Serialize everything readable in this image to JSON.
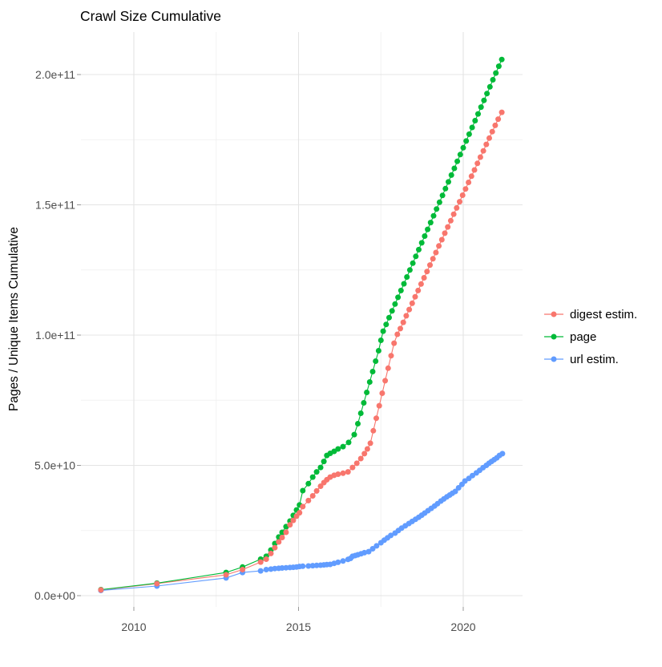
{
  "title": "Crawl Size Cumulative",
  "axes": {
    "y_label": "Pages / Unique Items Cumulative",
    "x_tick_labels": [
      "2010",
      "2015",
      "2020"
    ],
    "y_tick_labels": [
      "0.0e+00",
      "5.0e+10",
      "1.0e+11",
      "1.5e+11",
      "2.0e+11"
    ]
  },
  "legend": {
    "position": "right",
    "items": [
      "digest estim.",
      "page",
      "url estim."
    ]
  },
  "colors": {
    "digest": "#F8766D",
    "page": "#00BA38",
    "url": "#619CFF",
    "grid_major": "#e4e4e4",
    "grid_minor": "#f2f2f2",
    "tick_label": "#4d4d4d",
    "tick_mark": "#999999",
    "text": "#000000",
    "background": "#ffffff"
  },
  "chart_data": {
    "type": "line",
    "title": "Crawl Size Cumulative",
    "xlabel": "",
    "ylabel": "Pages / Unique Items Cumulative",
    "xlim": [
      2008.4,
      2021.8
    ],
    "ylim": [
      0,
      210000000000.0
    ],
    "x_ticks": [
      2010,
      2015,
      2020
    ],
    "x_tick_labels": [
      "2010",
      "2015",
      "2020"
    ],
    "x_minor_ticks": [
      2012.5,
      2017.5
    ],
    "y_ticks": [
      0,
      50000000000.0,
      100000000000.0,
      150000000000.0,
      200000000000.0
    ],
    "y_tick_labels": [
      "0.0e+00",
      "5.0e+10",
      "1.0e+11",
      "1.5e+11",
      "2.0e+11"
    ],
    "y_minor_ticks": [
      25000000000.0,
      75000000000.0,
      125000000000.0,
      175000000000.0
    ],
    "grid": true,
    "legend_position": "right",
    "marker_style": "point-with-line",
    "series": [
      {
        "name": "digest estim.",
        "color": "#F8766D",
        "points": [
          [
            2009.0,
            2200000000.0
          ],
          [
            2010.7,
            4600000000.0
          ],
          [
            2012.8,
            8000000000.0
          ],
          [
            2013.3,
            10000000000.0
          ],
          [
            2013.85,
            12900000000.0
          ],
          [
            2014.02,
            14000000000.0
          ],
          [
            2014.16,
            16200000000.0
          ],
          [
            2014.28,
            18400000000.0
          ],
          [
            2014.4,
            20600000000.0
          ],
          [
            2014.5,
            22300000000.0
          ],
          [
            2014.62,
            24300000000.0
          ],
          [
            2014.74,
            27200000000.0
          ],
          [
            2014.84,
            28900000000.0
          ],
          [
            2014.94,
            30500000000.0
          ],
          [
            2015.03,
            31800000000.0
          ],
          [
            2015.13,
            34200000000.0
          ],
          [
            2015.3,
            36500000000.0
          ],
          [
            2015.43,
            38300000000.0
          ],
          [
            2015.55,
            40200000000.0
          ],
          [
            2015.67,
            42000000000.0
          ],
          [
            2015.77,
            43400000000.0
          ],
          [
            2015.86,
            44500000000.0
          ],
          [
            2015.96,
            45500000000.0
          ],
          [
            2016.08,
            46200000000.0
          ],
          [
            2016.2,
            46600000000.0
          ],
          [
            2016.35,
            47000000000.0
          ],
          [
            2016.5,
            47500000000.0
          ],
          [
            2016.64,
            49200000000.0
          ],
          [
            2016.77,
            50800000000.0
          ],
          [
            2016.89,
            52600000000.0
          ],
          [
            2017.0,
            54500000000.0
          ],
          [
            2017.09,
            56300000000.0
          ],
          [
            2017.18,
            58500000000.0
          ],
          [
            2017.27,
            63300000000.0
          ],
          [
            2017.36,
            68100000000.0
          ],
          [
            2017.45,
            72900000000.0
          ],
          [
            2017.54,
            77700000000.0
          ],
          [
            2017.63,
            82500000000.0
          ],
          [
            2017.72,
            87300000000.0
          ],
          [
            2017.81,
            92100000000.0
          ],
          [
            2017.9,
            96900000000.0
          ],
          [
            2018.0,
            100300000000.0
          ],
          [
            2018.09,
            102500000000.0
          ],
          [
            2018.18,
            104900000000.0
          ],
          [
            2018.27,
            107400000000.0
          ],
          [
            2018.36,
            109800000000.0
          ],
          [
            2018.45,
            112200000000.0
          ],
          [
            2018.54,
            114700000000.0
          ],
          [
            2018.63,
            117100000000.0
          ],
          [
            2018.72,
            119600000000.0
          ],
          [
            2018.81,
            122000000000.0
          ],
          [
            2018.9,
            124400000000.0
          ],
          [
            2018.99,
            126900000000.0
          ],
          [
            2019.08,
            129300000000.0
          ],
          [
            2019.17,
            131700000000.0
          ],
          [
            2019.26,
            134200000000.0
          ],
          [
            2019.35,
            136600000000.0
          ],
          [
            2019.44,
            139100000000.0
          ],
          [
            2019.53,
            141500000000.0
          ],
          [
            2019.62,
            143900000000.0
          ],
          [
            2019.71,
            146400000000.0
          ],
          [
            2019.8,
            148800000000.0
          ],
          [
            2019.89,
            151200000000.0
          ],
          [
            2019.98,
            153700000000.0
          ],
          [
            2020.07,
            156100000000.0
          ],
          [
            2020.16,
            158600000000.0
          ],
          [
            2020.25,
            161000000000.0
          ],
          [
            2020.34,
            163400000000.0
          ],
          [
            2020.43,
            165900000000.0
          ],
          [
            2020.52,
            168300000000.0
          ],
          [
            2020.61,
            170700000000.0
          ],
          [
            2020.7,
            173200000000.0
          ],
          [
            2020.79,
            175600000000.0
          ],
          [
            2020.88,
            178100000000.0
          ],
          [
            2020.97,
            180500000000.0
          ],
          [
            2021.06,
            182900000000.0
          ],
          [
            2021.17,
            185500000000.0
          ]
        ]
      },
      {
        "name": "page",
        "color": "#00BA38",
        "points": [
          [
            2009.0,
            2300000000.0
          ],
          [
            2010.7,
            4800000000.0
          ],
          [
            2012.8,
            8900000000.0
          ],
          [
            2013.3,
            11000000000.0
          ],
          [
            2013.85,
            14000000000.0
          ],
          [
            2014.02,
            15100000000.0
          ],
          [
            2014.16,
            17500000000.0
          ],
          [
            2014.28,
            20000000000.0
          ],
          [
            2014.4,
            22500000000.0
          ],
          [
            2014.5,
            24300000000.0
          ],
          [
            2014.62,
            26500000000.0
          ],
          [
            2014.74,
            28600000000.0
          ],
          [
            2014.84,
            30800000000.0
          ],
          [
            2014.94,
            32900000000.0
          ],
          [
            2015.03,
            34800000000.0
          ],
          [
            2015.13,
            40300000000.0
          ],
          [
            2015.3,
            43000000000.0
          ],
          [
            2015.43,
            45500000000.0
          ],
          [
            2015.55,
            47500000000.0
          ],
          [
            2015.67,
            49200000000.0
          ],
          [
            2015.77,
            51500000000.0
          ],
          [
            2015.86,
            53800000000.0
          ],
          [
            2015.96,
            54600000000.0
          ],
          [
            2016.08,
            55400000000.0
          ],
          [
            2016.2,
            56300000000.0
          ],
          [
            2016.35,
            57200000000.0
          ],
          [
            2016.52,
            58800000000.0
          ],
          [
            2016.69,
            61800000000.0
          ],
          [
            2016.8,
            66000000000.0
          ],
          [
            2016.89,
            70000000000.0
          ],
          [
            2016.98,
            74000000000.0
          ],
          [
            2017.07,
            78000000000.0
          ],
          [
            2017.16,
            82000000000.0
          ],
          [
            2017.25,
            86000000000.0
          ],
          [
            2017.34,
            90000000000.0
          ],
          [
            2017.43,
            94000000000.0
          ],
          [
            2017.5,
            98000000000.0
          ],
          [
            2017.57,
            101500000000.0
          ],
          [
            2017.66,
            104100000000.0
          ],
          [
            2017.75,
            106700000000.0
          ],
          [
            2017.84,
            109300000000.0
          ],
          [
            2017.93,
            111900000000.0
          ],
          [
            2018.02,
            114500000000.0
          ],
          [
            2018.11,
            117100000000.0
          ],
          [
            2018.2,
            119700000000.0
          ],
          [
            2018.29,
            122300000000.0
          ],
          [
            2018.38,
            125000000000.0
          ],
          [
            2018.47,
            127600000000.0
          ],
          [
            2018.56,
            130200000000.0
          ],
          [
            2018.65,
            132800000000.0
          ],
          [
            2018.74,
            135400000000.0
          ],
          [
            2018.83,
            138000000000.0
          ],
          [
            2018.92,
            140600000000.0
          ],
          [
            2019.01,
            143200000000.0
          ],
          [
            2019.1,
            145800000000.0
          ],
          [
            2019.19,
            148400000000.0
          ],
          [
            2019.28,
            151000000000.0
          ],
          [
            2019.37,
            153600000000.0
          ],
          [
            2019.46,
            156200000000.0
          ],
          [
            2019.55,
            158800000000.0
          ],
          [
            2019.64,
            161400000000.0
          ],
          [
            2019.73,
            164000000000.0
          ],
          [
            2019.82,
            166700000000.0
          ],
          [
            2019.91,
            169300000000.0
          ],
          [
            2020.0,
            171900000000.0
          ],
          [
            2020.09,
            174500000000.0
          ],
          [
            2020.18,
            177100000000.0
          ],
          [
            2020.27,
            179700000000.0
          ],
          [
            2020.36,
            182300000000.0
          ],
          [
            2020.45,
            184900000000.0
          ],
          [
            2020.54,
            187500000000.0
          ],
          [
            2020.63,
            190100000000.0
          ],
          [
            2020.72,
            192700000000.0
          ],
          [
            2020.81,
            195300000000.0
          ],
          [
            2020.9,
            198000000000.0
          ],
          [
            2020.99,
            200600000000.0
          ],
          [
            2021.08,
            203200000000.0
          ],
          [
            2021.17,
            205800000000.0
          ]
        ]
      },
      {
        "name": "url estim.",
        "color": "#619CFF",
        "points": [
          [
            2009.0,
            2000000000.0
          ],
          [
            2010.7,
            3700000000.0
          ],
          [
            2012.8,
            6800000000.0
          ],
          [
            2013.3,
            8900000000.0
          ],
          [
            2013.85,
            9500000000.0
          ],
          [
            2014.02,
            10000000000.0
          ],
          [
            2014.16,
            10200000000.0
          ],
          [
            2014.28,
            10400000000.0
          ],
          [
            2014.4,
            10500000000.0
          ],
          [
            2014.5,
            10600000000.0
          ],
          [
            2014.62,
            10700000000.0
          ],
          [
            2014.74,
            10800000000.0
          ],
          [
            2014.84,
            10900000000.0
          ],
          [
            2014.94,
            11000000000.0
          ],
          [
            2015.03,
            11200000000.0
          ],
          [
            2015.13,
            11300000000.0
          ],
          [
            2015.3,
            11400000000.0
          ],
          [
            2015.43,
            11500000000.0
          ],
          [
            2015.55,
            11600000000.0
          ],
          [
            2015.67,
            11700000000.0
          ],
          [
            2015.77,
            11800000000.0
          ],
          [
            2015.86,
            11900000000.0
          ],
          [
            2015.96,
            12000000000.0
          ],
          [
            2016.08,
            12400000000.0
          ],
          [
            2016.2,
            12800000000.0
          ],
          [
            2016.35,
            13300000000.0
          ],
          [
            2016.5,
            13900000000.0
          ],
          [
            2016.58,
            14300000000.0
          ],
          [
            2016.64,
            15100000000.0
          ],
          [
            2016.72,
            15400000000.0
          ],
          [
            2016.8,
            15700000000.0
          ],
          [
            2016.9,
            16100000000.0
          ],
          [
            2017.0,
            16500000000.0
          ],
          [
            2017.13,
            16900000000.0
          ],
          [
            2017.25,
            18000000000.0
          ],
          [
            2017.37,
            19100000000.0
          ],
          [
            2017.5,
            20300000000.0
          ],
          [
            2017.6,
            21300000000.0
          ],
          [
            2017.7,
            22200000000.0
          ],
          [
            2017.8,
            23100000000.0
          ],
          [
            2017.93,
            24000000000.0
          ],
          [
            2018.03,
            25000000000.0
          ],
          [
            2018.13,
            25900000000.0
          ],
          [
            2018.24,
            26800000000.0
          ],
          [
            2018.35,
            27700000000.0
          ],
          [
            2018.45,
            28500000000.0
          ],
          [
            2018.55,
            29300000000.0
          ],
          [
            2018.65,
            30100000000.0
          ],
          [
            2018.74,
            30900000000.0
          ],
          [
            2018.83,
            31700000000.0
          ],
          [
            2018.93,
            32600000000.0
          ],
          [
            2019.03,
            33500000000.0
          ],
          [
            2019.13,
            34400000000.0
          ],
          [
            2019.22,
            35300000000.0
          ],
          [
            2019.32,
            36300000000.0
          ],
          [
            2019.41,
            37100000000.0
          ],
          [
            2019.5,
            37900000000.0
          ],
          [
            2019.59,
            38600000000.0
          ],
          [
            2019.67,
            39300000000.0
          ],
          [
            2019.76,
            40000000000.0
          ],
          [
            2019.86,
            41400000000.0
          ],
          [
            2019.96,
            42700000000.0
          ],
          [
            2020.05,
            44000000000.0
          ],
          [
            2020.17,
            45000000000.0
          ],
          [
            2020.28,
            46100000000.0
          ],
          [
            2020.4,
            47100000000.0
          ],
          [
            2020.5,
            48100000000.0
          ],
          [
            2020.6,
            49100000000.0
          ],
          [
            2020.7,
            50000000000.0
          ],
          [
            2020.78,
            50800000000.0
          ],
          [
            2020.86,
            51500000000.0
          ],
          [
            2020.94,
            52200000000.0
          ],
          [
            2021.02,
            52900000000.0
          ],
          [
            2021.1,
            53800000000.0
          ],
          [
            2021.19,
            54500000000.0
          ]
        ]
      }
    ]
  }
}
